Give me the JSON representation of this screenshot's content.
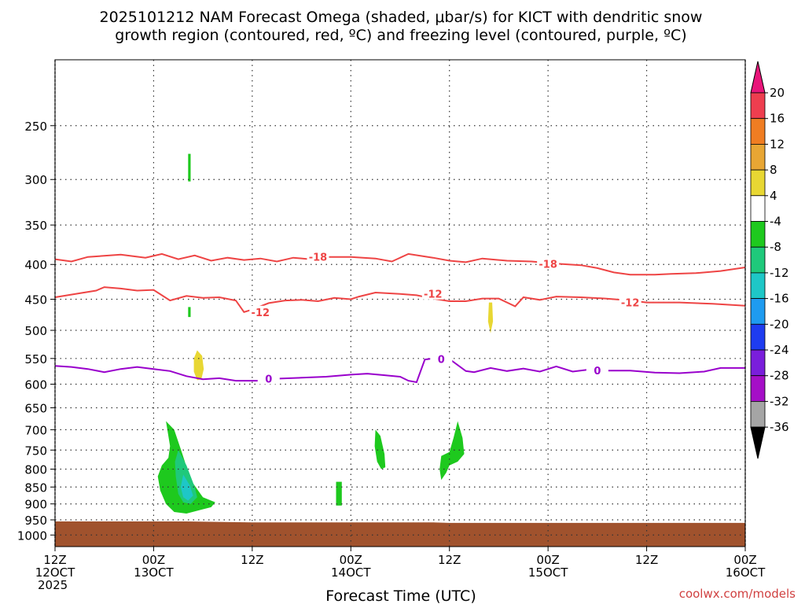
{
  "title_line1": "2025101212 NAM Forecast Omega (shaded, μbar/s) for KICT with dendritic snow",
  "title_line2": "growth region (contoured, red, ºC) and freezing level (contoured, purple, ºC)",
  "credit": "coolwx.com/models",
  "chart_data": {
    "type": "contour",
    "title": "2025101212 NAM Forecast Omega (shaded, μbar/s) for KICT with dendritic snow growth region (contoured, red, ºC) and freezing level (contoured, purple, ºC)",
    "xlabel": "Forecast Time (UTC)",
    "ylabel": "",
    "x_range_hours": [
      0,
      84
    ],
    "y_range_mb": [
      200,
      1040
    ],
    "y_axis": "log-pressure, inverted",
    "grid": true,
    "x_ticks": [
      {
        "hour": 0,
        "line1": "12Z",
        "line2": "12OCT",
        "line3": "2025"
      },
      {
        "hour": 12,
        "line1": "00Z",
        "line2": "13OCT",
        "line3": ""
      },
      {
        "hour": 24,
        "line1": "12Z",
        "line2": "",
        "line3": ""
      },
      {
        "hour": 36,
        "line1": "00Z",
        "line2": "14OCT",
        "line3": ""
      },
      {
        "hour": 48,
        "line1": "12Z",
        "line2": "",
        "line3": ""
      },
      {
        "hour": 60,
        "line1": "00Z",
        "line2": "15OCT",
        "line3": ""
      },
      {
        "hour": 72,
        "line1": "12Z",
        "line2": "",
        "line3": ""
      },
      {
        "hour": 84,
        "line1": "00Z",
        "line2": "16OCT",
        "line3": ""
      }
    ],
    "y_ticks": [
      250,
      300,
      350,
      400,
      450,
      500,
      550,
      600,
      650,
      700,
      750,
      800,
      850,
      900,
      950,
      1000
    ],
    "colorbar": {
      "labels": [
        20,
        16,
        12,
        8,
        4,
        -4,
        -8,
        -12,
        -16,
        -20,
        -24,
        -28,
        -32,
        -36
      ],
      "colors": [
        "#ee3e4f",
        "#f07d22",
        "#e8a634",
        "#e8d733",
        "#ffffff",
        "#1ec91e",
        "#1fc97b",
        "#1ec7c7",
        "#1e9bf0",
        "#1e3cf0",
        "#7a1edb",
        "#a50fc7",
        "#a5a5a5"
      ],
      "top_arrow_color": "#e8157a",
      "bottom_arrow_color": "#000000"
    },
    "series": [
      {
        "name": "-18 C isotherm",
        "color": "#ee4444",
        "label": "-18",
        "points": [
          [
            0,
            393
          ],
          [
            2,
            396
          ],
          [
            4,
            390
          ],
          [
            8,
            387
          ],
          [
            11,
            391
          ],
          [
            13,
            386
          ],
          [
            15,
            393
          ],
          [
            17,
            388
          ],
          [
            19,
            395
          ],
          [
            21,
            391
          ],
          [
            23,
            394
          ],
          [
            25,
            392
          ],
          [
            27,
            396
          ],
          [
            29,
            391
          ],
          [
            31,
            393
          ],
          [
            33,
            390
          ],
          [
            36,
            390
          ],
          [
            39,
            392
          ],
          [
            41,
            396
          ],
          [
            43,
            386
          ],
          [
            46,
            391
          ],
          [
            48,
            395
          ],
          [
            50,
            397
          ],
          [
            52,
            392
          ],
          [
            55,
            395
          ],
          [
            58,
            396
          ],
          [
            61,
            399
          ],
          [
            64,
            401
          ],
          [
            66,
            405
          ],
          [
            68,
            411
          ],
          [
            70,
            414
          ],
          [
            73,
            414
          ],
          [
            75,
            413
          ],
          [
            78,
            412
          ],
          [
            81,
            409
          ],
          [
            84,
            404
          ]
        ],
        "labels_at": [
          [
            32,
            390
          ],
          [
            60,
            399
          ]
        ]
      },
      {
        "name": "-12 C isotherm",
        "color": "#ee4444",
        "label": "-12",
        "points": [
          [
            0,
            447
          ],
          [
            3,
            441
          ],
          [
            5,
            437
          ],
          [
            6,
            432
          ],
          [
            8,
            434
          ],
          [
            10,
            437
          ],
          [
            12,
            436
          ],
          [
            14,
            452
          ],
          [
            16,
            445
          ],
          [
            18,
            448
          ],
          [
            20,
            447
          ],
          [
            22,
            452
          ],
          [
            23,
            470
          ],
          [
            24,
            466
          ],
          [
            26,
            456
          ],
          [
            28,
            452
          ],
          [
            30,
            451
          ],
          [
            32,
            453
          ],
          [
            34,
            448
          ],
          [
            36,
            450
          ],
          [
            37,
            446
          ],
          [
            39,
            440
          ],
          [
            42,
            442
          ],
          [
            44,
            444
          ],
          [
            46,
            449
          ],
          [
            48,
            453
          ],
          [
            50,
            453
          ],
          [
            52,
            449
          ],
          [
            54,
            449
          ],
          [
            56,
            461
          ],
          [
            57,
            447
          ],
          [
            59,
            451
          ],
          [
            61,
            446
          ],
          [
            64,
            447
          ],
          [
            67,
            449
          ],
          [
            70,
            452
          ],
          [
            72,
            455
          ],
          [
            76,
            455
          ],
          [
            80,
            457
          ],
          [
            84,
            460
          ]
        ],
        "labels_at": [
          [
            25,
            470
          ],
          [
            46,
            442
          ],
          [
            70,
            455
          ]
        ]
      },
      {
        "name": "0 C freezing level",
        "color": "#9900cc",
        "label": "0",
        "points": [
          [
            0,
            564
          ],
          [
            2,
            566
          ],
          [
            4,
            570
          ],
          [
            6,
            576
          ],
          [
            8,
            570
          ],
          [
            10,
            566
          ],
          [
            12,
            570
          ],
          [
            14,
            574
          ],
          [
            16,
            584
          ],
          [
            18,
            590
          ],
          [
            20,
            588
          ],
          [
            22,
            593
          ],
          [
            25,
            593
          ],
          [
            27,
            589
          ],
          [
            30,
            587
          ],
          [
            33,
            585
          ],
          [
            36,
            581
          ],
          [
            38,
            579
          ],
          [
            40,
            582
          ],
          [
            42,
            585
          ],
          [
            43,
            593
          ],
          [
            44,
            596
          ],
          [
            45,
            552
          ],
          [
            46,
            550
          ],
          [
            48,
            551
          ],
          [
            50,
            574
          ],
          [
            51,
            576
          ],
          [
            53,
            568
          ],
          [
            55,
            574
          ],
          [
            57,
            569
          ],
          [
            59,
            575
          ],
          [
            61,
            565
          ],
          [
            63,
            575
          ],
          [
            65,
            571
          ],
          [
            67,
            573
          ],
          [
            70,
            573
          ],
          [
            73,
            577
          ],
          [
            76,
            578
          ],
          [
            79,
            575
          ],
          [
            81,
            568
          ],
          [
            84,
            568
          ]
        ],
        "labels_at": [
          [
            26,
            589
          ],
          [
            47,
            551
          ],
          [
            66,
            573
          ]
        ]
      }
    ],
    "omega_regions": [
      {
        "level": "-4 to -8",
        "color": "#1ec91e",
        "center_hour": 14.5,
        "center_mb": 800,
        "note": "large green region 700-930 mb"
      },
      {
        "level": "-8 to -12",
        "color": "#1fc97b",
        "center_hour": 15.5,
        "center_mb": 820
      },
      {
        "level": "-12 to -16",
        "color": "#1ec7c7",
        "center_hour": 16,
        "center_mb": 850
      },
      {
        "level": "-4 to -8",
        "color": "#1ec91e",
        "center_hour": 34.5,
        "center_mb": 870
      },
      {
        "level": "-4 to -8",
        "color": "#1ec91e",
        "center_hour": 39.5,
        "center_mb": 740
      },
      {
        "level": "-4 to -8",
        "color": "#1ec91e",
        "center_hour": 48.5,
        "center_mb": 760
      },
      {
        "level": "-4 to -8",
        "color": "#1ec91e",
        "center_hour": 16.5,
        "center_mb": 290
      },
      {
        "level": "-4 to -8",
        "color": "#1ec91e",
        "center_hour": 16.5,
        "center_mb": 467
      },
      {
        "level": "4 to 8",
        "color": "#e8d733",
        "center_hour": 17.5,
        "center_mb": 565
      },
      {
        "level": "4 to 8",
        "color": "#e8d733",
        "center_hour": 53,
        "center_mb": 480
      }
    ],
    "terrain": {
      "color": "#a0522d",
      "surface_mb_start": 955,
      "surface_mb_end": 960
    }
  }
}
